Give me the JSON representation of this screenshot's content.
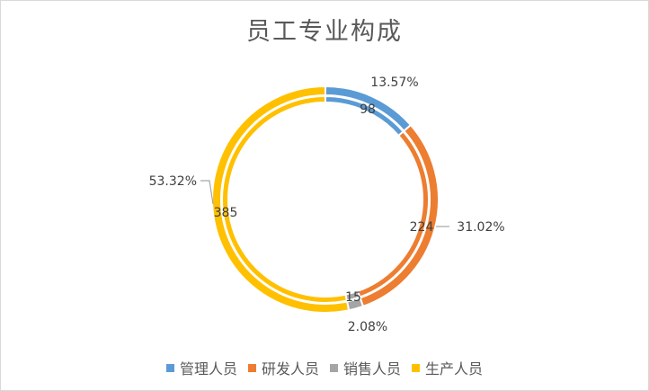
{
  "chart_data": {
    "type": "doughnut",
    "title": "员工专业构成",
    "categories": [
      "管理人员",
      "研发人员",
      "销售人员",
      "生产人员"
    ],
    "series": [
      {
        "values": [
          98,
          224,
          15,
          385
        ]
      },
      {
        "values": [
          13.57,
          31.02,
          2.08,
          53.32
        ]
      }
    ],
    "value_labels": [
      "98",
      "224",
      "15",
      "385"
    ],
    "percent_labels": [
      "13.57%",
      "31.02%",
      "2.08%",
      "53.32%"
    ],
    "colors": [
      "#5b9bd5",
      "#ed7d31",
      "#a5a5a5",
      "#ffc000"
    ],
    "legend_position": "bottom"
  }
}
